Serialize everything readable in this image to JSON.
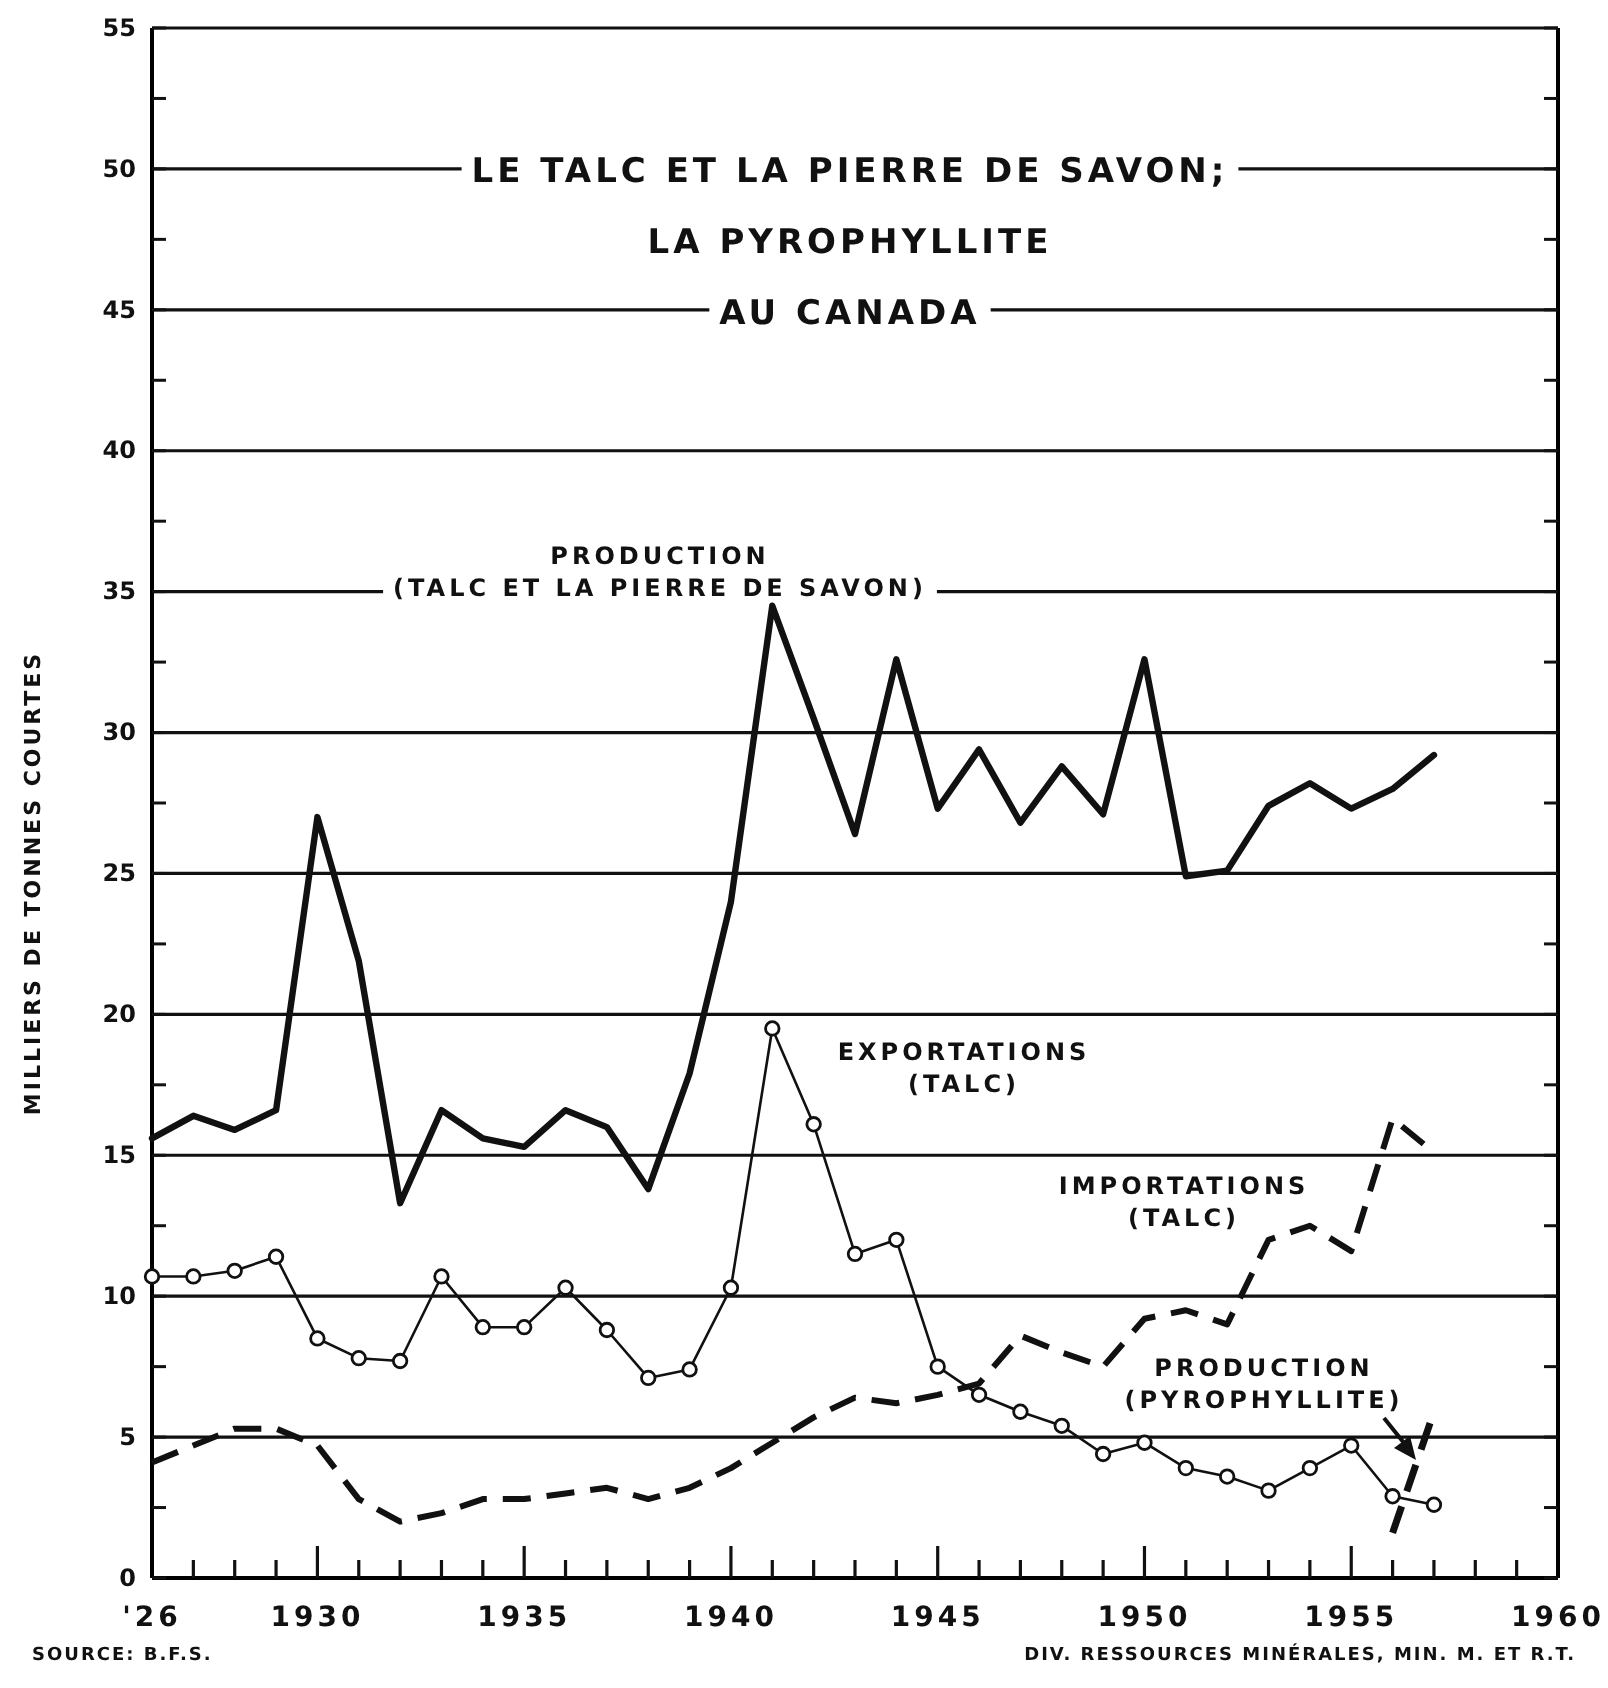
{
  "chart_data": {
    "type": "line",
    "title": "LE TALC ET LA PIERRE DE SAVON;\nLA PYROPHYLLITE\nAU CANADA",
    "ylabel": "MILLIERS DE TONNES COURTES",
    "x": [
      1926,
      1927,
      1928,
      1929,
      1930,
      1931,
      1932,
      1933,
      1934,
      1935,
      1936,
      1937,
      1938,
      1939,
      1940,
      1941,
      1942,
      1943,
      1944,
      1945,
      1946,
      1947,
      1948,
      1949,
      1950,
      1951,
      1952,
      1953,
      1954,
      1955,
      1956,
      1957
    ],
    "series": [
      {
        "name": "PRODUCTION (TALC ET LA PIERRE DE SAVON)",
        "color": "#111111",
        "line_style": "solid",
        "marker": "none",
        "values": [
          15.6,
          16.4,
          15.9,
          16.6,
          27.0,
          21.9,
          13.3,
          16.6,
          15.6,
          15.3,
          16.6,
          16.0,
          13.8,
          17.9,
          24.0,
          34.5,
          30.5,
          26.4,
          32.6,
          27.3,
          29.4,
          26.8,
          28.8,
          27.1,
          32.6,
          24.9,
          25.1,
          27.4,
          28.2,
          27.3,
          28.0,
          29.2
        ]
      },
      {
        "name": "EXPORTATIONS (TALC)",
        "color": "#111111",
        "line_style": "solid",
        "marker": "circle",
        "values": [
          10.7,
          10.7,
          10.9,
          11.4,
          8.5,
          7.8,
          7.7,
          10.7,
          8.9,
          8.9,
          10.3,
          8.8,
          7.1,
          7.4,
          10.3,
          19.5,
          16.1,
          11.5,
          12.0,
          7.5,
          6.5,
          5.9,
          5.4,
          4.4,
          4.8,
          3.9,
          3.6,
          3.1,
          3.9,
          4.7,
          2.9,
          2.6
        ]
      },
      {
        "name": "IMPORTATIONS (TALC)",
        "color": "#111111",
        "line_style": "dashed",
        "marker": "none",
        "values": [
          4.1,
          4.7,
          5.3,
          5.3,
          4.7,
          2.8,
          2.0,
          2.3,
          2.8,
          2.8,
          3.0,
          3.2,
          2.8,
          3.2,
          3.9,
          4.8,
          5.7,
          6.4,
          6.2,
          6.5,
          6.9,
          8.6,
          8.0,
          7.5,
          9.2,
          9.5,
          9.0,
          12.0,
          12.5,
          11.6,
          16.3,
          15.1
        ]
      },
      {
        "name": "PRODUCTION (PYROPHYLLITE)",
        "color": "#111111",
        "line_style": "dashed",
        "marker": "none",
        "x": [
          1956,
          1957
        ],
        "values": [
          1.6,
          5.9
        ]
      }
    ],
    "xlim": [
      1926,
      1960
    ],
    "xticks": [
      {
        "value": 1926,
        "label": "'26"
      },
      {
        "value": 1927,
        "label": null
      },
      {
        "value": 1928,
        "label": null
      },
      {
        "value": 1929,
        "label": null
      },
      1930,
      {
        "value": 1931,
        "label": null
      },
      {
        "value": 1932,
        "label": null
      },
      {
        "value": 1933,
        "label": null
      },
      {
        "value": 1934,
        "label": null
      },
      1935,
      {
        "value": 1936,
        "label": null
      },
      {
        "value": 1937,
        "label": null
      },
      {
        "value": 1938,
        "label": null
      },
      {
        "value": 1939,
        "label": null
      },
      1940,
      {
        "value": 1941,
        "label": null
      },
      {
        "value": 1942,
        "label": null
      },
      {
        "value": 1943,
        "label": null
      },
      {
        "value": 1944,
        "label": null
      },
      1945,
      {
        "value": 1946,
        "label": null
      },
      {
        "value": 1947,
        "label": null
      },
      {
        "value": 1948,
        "label": null
      },
      {
        "value": 1949,
        "label": null
      },
      1950,
      {
        "value": 1951,
        "label": null
      },
      {
        "value": 1952,
        "label": null
      },
      {
        "value": 1953,
        "label": null
      },
      {
        "value": 1954,
        "label": null
      },
      1955,
      {
        "value": 1956,
        "label": null
      },
      {
        "value": 1957,
        "label": null
      },
      {
        "value": 1958,
        "label": null
      },
      {
        "value": 1959,
        "label": null
      },
      1960
    ],
    "ylim": [
      0,
      55
    ],
    "yticks": [
      0,
      {
        "value": 2.5,
        "label": null
      },
      5,
      {
        "value": 7.5,
        "label": null
      },
      10,
      {
        "value": 12.5,
        "label": null
      },
      15,
      {
        "value": 17.5,
        "label": null
      },
      20,
      {
        "value": 22.5,
        "label": null
      },
      25,
      {
        "value": 27.5,
        "label": null
      },
      30,
      {
        "value": 32.5,
        "label": null
      },
      35,
      {
        "value": 37.5,
        "label": null
      },
      40,
      {
        "value": 42.5,
        "label": null
      },
      45,
      {
        "value": 47.5,
        "label": null
      },
      50,
      {
        "value": 52.5,
        "label": null
      },
      55
    ],
    "grid": "y",
    "legend": false,
    "annotations": [
      "SOURCE: B.F.S.",
      "DIV. RESSOURCES MINÉRALES, MIN. M. ET R.T."
    ]
  }
}
